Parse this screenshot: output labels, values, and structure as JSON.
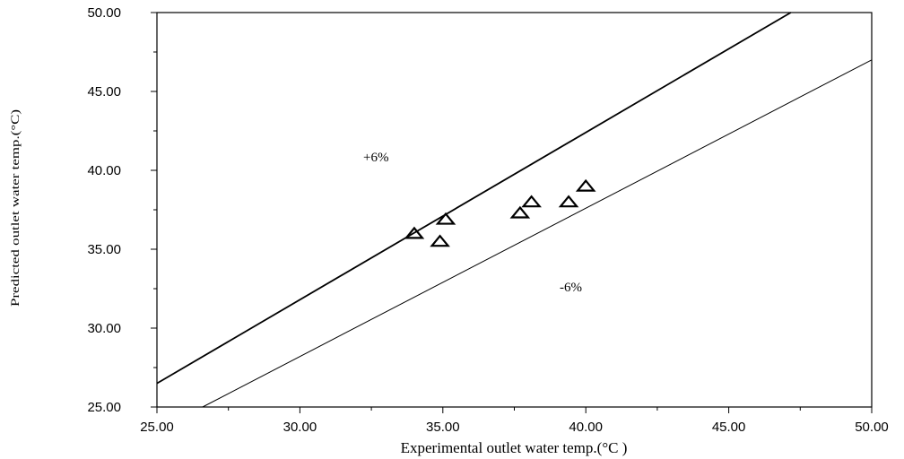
{
  "chart_data": {
    "type": "scatter",
    "xlabel": "Experimental outlet water temp.(°C )",
    "ylabel": "Predicted outlet water temp.(°C)",
    "xlim": [
      25,
      50
    ],
    "ylim": [
      25,
      50
    ],
    "x_ticks": [
      "25.00",
      "30.00",
      "35.00",
      "40.00",
      "45.00",
      "50.00"
    ],
    "y_ticks": [
      "25.00",
      "30.00",
      "35.00",
      "40.00",
      "45.00",
      "50.00"
    ],
    "grid": false,
    "marker": "open-triangle",
    "points": [
      {
        "x": 34.0,
        "y": 36.0
      },
      {
        "x": 34.9,
        "y": 35.5
      },
      {
        "x": 35.1,
        "y": 36.9
      },
      {
        "x": 37.7,
        "y": 37.3
      },
      {
        "x": 38.1,
        "y": 38.0
      },
      {
        "x": 39.4,
        "y": 38.0
      },
      {
        "x": 40.0,
        "y": 39.0
      }
    ],
    "reference_lines": [
      {
        "label": "+6%",
        "slope": 1.06
      },
      {
        "label": "-6%",
        "slope": 0.94
      }
    ]
  }
}
